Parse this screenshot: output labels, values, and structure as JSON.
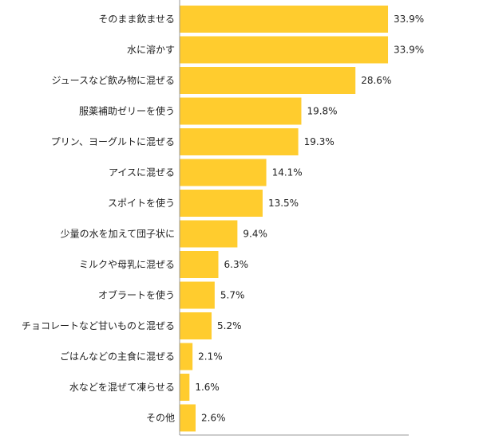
{
  "chart_data": {
    "type": "bar",
    "orientation": "horizontal",
    "categories": [
      "そのまま飲ませる",
      "水に溶かす",
      "ジュースなど飲み物に混ぜる",
      "服薬補助ゼリーを使う",
      "プリン、ヨーグルトに混ぜる",
      "アイスに混ぜる",
      "スポイトを使う",
      "少量の水を加えて団子状に",
      "ミルクや母乳に混ぜる",
      "オブラートを使う",
      "チョコレートなど甘いものと混ぜる",
      "ごはんなどの主食に混ぜる",
      "水などを混ぜて凍らせる",
      "その他"
    ],
    "values": [
      33.9,
      33.9,
      28.6,
      19.8,
      19.3,
      14.1,
      13.5,
      9.4,
      6.3,
      5.7,
      5.2,
      2.1,
      1.6,
      2.6
    ],
    "value_labels": [
      "33.9%",
      "33.9%",
      "28.6%",
      "19.8%",
      "19.3%",
      "14.1%",
      "13.5%",
      "9.4%",
      "6.3%",
      "5.7%",
      "5.2%",
      "2.1%",
      "1.6%",
      "2.6%"
    ],
    "xlim": [
      0,
      40
    ],
    "grid": false,
    "legend": "none",
    "bar_color": "#FFCC2E",
    "axis_color": "#999999"
  }
}
